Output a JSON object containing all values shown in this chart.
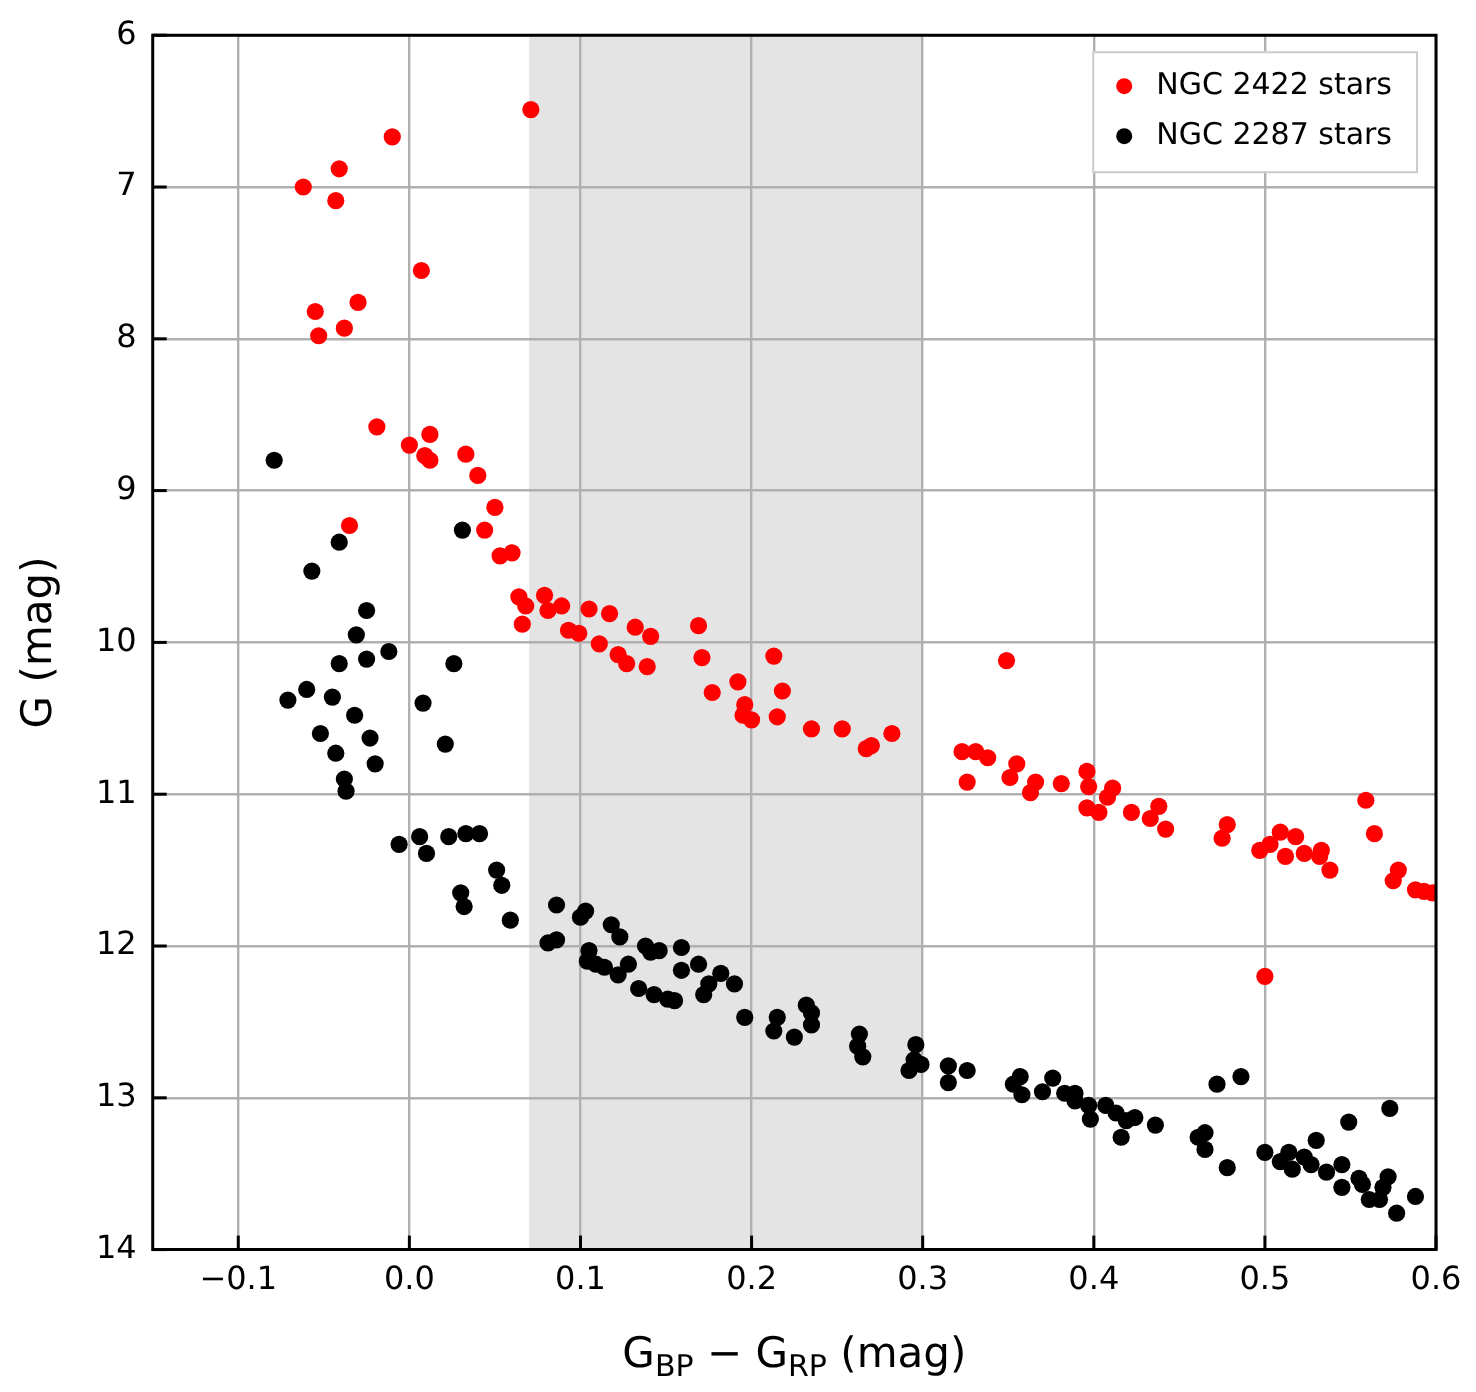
{
  "chart_data": {
    "type": "scatter",
    "xlabel": "G$_{BP}$ − G$_{RP}$ (mag)",
    "ylabel": "G (mag)",
    "xlim": [
      -0.15,
      0.6
    ],
    "ylim": [
      14,
      6
    ],
    "xticks": [
      {
        "value": -0.1,
        "label": "−0.1"
      },
      {
        "value": 0,
        "label": "0.0"
      },
      0.1,
      0.2,
      0.3,
      0.4,
      0.5,
      0.6
    ],
    "yticks": [
      6,
      7,
      8,
      9,
      10,
      11,
      12,
      13,
      14
    ],
    "grid": true,
    "legend": "top right",
    "marker": "circle",
    "bands": [
      {
        "axis": "x",
        "from": 0.07,
        "to": 0.3,
        "color": "#e4e4e4"
      }
    ],
    "series": [
      {
        "name": "NGC 2422 stars",
        "color": "#ff0000",
        "x": [
          0.071,
          -0.01,
          -0.041,
          -0.062,
          -0.043,
          0.007,
          -0.03,
          -0.055,
          -0.038,
          -0.053,
          -0.019,
          0.0,
          0.012,
          0.009,
          0.012,
          0.033,
          0.04,
          -0.035,
          0.05,
          0.044,
          0.053,
          0.06,
          0.064,
          0.068,
          0.066,
          0.079,
          0.081,
          0.089,
          0.105,
          0.093,
          0.099,
          0.111,
          0.117,
          0.122,
          0.127,
          0.132,
          0.139,
          0.141,
          0.169,
          0.171,
          0.177,
          0.192,
          0.196,
          0.195,
          0.2,
          0.213,
          0.218,
          0.215,
          0.235,
          0.253,
          0.267,
          0.27,
          0.282,
          0.323,
          0.331,
          0.338,
          0.326,
          0.349,
          0.355,
          0.351,
          0.366,
          0.363,
          0.381,
          0.396,
          0.397,
          0.396,
          0.403,
          0.408,
          0.411,
          0.422,
          0.433,
          0.438,
          0.442,
          0.478,
          0.475,
          0.497,
          0.503,
          0.509,
          0.518,
          0.512,
          0.523,
          0.533,
          0.532,
          0.538,
          0.559,
          0.564,
          0.578,
          0.575,
          0.588,
          0.593,
          0.598,
          0.5
        ],
        "values": [
          6.49,
          6.67,
          6.88,
          7.0,
          7.09,
          7.55,
          7.76,
          7.82,
          7.93,
          7.98,
          8.58,
          8.7,
          8.63,
          8.77,
          8.8,
          8.76,
          8.9,
          9.23,
          9.11,
          9.26,
          9.43,
          9.41,
          9.7,
          9.76,
          9.88,
          9.69,
          9.79,
          9.76,
          9.78,
          9.92,
          9.94,
          10.01,
          9.81,
          10.08,
          10.14,
          9.9,
          10.16,
          9.96,
          9.89,
          10.1,
          10.33,
          10.26,
          10.41,
          10.48,
          10.51,
          10.09,
          10.32,
          10.49,
          10.57,
          10.57,
          10.7,
          10.68,
          10.6,
          10.72,
          10.72,
          10.76,
          10.92,
          10.12,
          10.8,
          10.89,
          10.92,
          10.99,
          10.93,
          10.85,
          10.95,
          11.09,
          11.12,
          11.02,
          10.96,
          11.12,
          11.16,
          11.08,
          11.23,
          11.2,
          11.29,
          11.37,
          11.33,
          11.25,
          11.28,
          11.41,
          11.39,
          11.37,
          11.41,
          11.5,
          11.04,
          11.26,
          11.5,
          11.57,
          11.63,
          11.64,
          11.65,
          12.2
        ]
      },
      {
        "name": "NGC 2287 stars",
        "color": "#000000",
        "x": [
          -0.079,
          0.031,
          -0.041,
          -0.057,
          -0.025,
          -0.031,
          -0.012,
          -0.025,
          -0.041,
          0.026,
          -0.06,
          -0.071,
          -0.045,
          0.008,
          -0.032,
          -0.052,
          -0.023,
          0.021,
          -0.043,
          -0.02,
          -0.038,
          -0.037,
          -0.006,
          0.006,
          0.01,
          0.023,
          0.033,
          0.041,
          0.051,
          0.054,
          0.03,
          0.032,
          0.059,
          0.086,
          0.1,
          0.103,
          0.081,
          0.086,
          0.105,
          0.104,
          0.109,
          0.114,
          0.118,
          0.123,
          0.122,
          0.128,
          0.134,
          0.138,
          0.141,
          0.146,
          0.143,
          0.151,
          0.155,
          0.159,
          0.159,
          0.169,
          0.175,
          0.172,
          0.182,
          0.19,
          0.196,
          0.215,
          0.213,
          0.225,
          0.232,
          0.235,
          0.235,
          0.263,
          0.262,
          0.265,
          0.296,
          0.295,
          0.292,
          0.299,
          0.315,
          0.315,
          0.326,
          0.357,
          0.353,
          0.358,
          0.37,
          0.376,
          0.383,
          0.389,
          0.389,
          0.397,
          0.398,
          0.407,
          0.413,
          0.416,
          0.419,
          0.424,
          0.436,
          0.461,
          0.465,
          0.465,
          0.472,
          0.486,
          0.478,
          0.5,
          0.509,
          0.514,
          0.516,
          0.523,
          0.527,
          0.53,
          0.536,
          0.545,
          0.545,
          0.549,
          0.555,
          0.557,
          0.561,
          0.569,
          0.572,
          0.567,
          0.573,
          0.577,
          0.588
        ],
        "values": [
          8.8,
          9.26,
          9.34,
          9.53,
          9.79,
          9.95,
          10.06,
          10.11,
          10.14,
          10.14,
          10.31,
          10.38,
          10.36,
          10.4,
          10.48,
          10.6,
          10.63,
          10.67,
          10.73,
          10.8,
          10.9,
          10.98,
          11.33,
          11.28,
          11.39,
          11.28,
          11.26,
          11.26,
          11.5,
          11.6,
          11.65,
          11.74,
          11.83,
          11.73,
          11.81,
          11.77,
          11.98,
          11.96,
          12.03,
          12.1,
          12.12,
          12.14,
          11.86,
          11.94,
          12.19,
          12.12,
          12.28,
          12.0,
          12.04,
          12.03,
          12.32,
          12.35,
          12.36,
          12.01,
          12.16,
          12.12,
          12.25,
          12.32,
          12.18,
          12.25,
          12.47,
          12.47,
          12.56,
          12.6,
          12.39,
          12.44,
          12.52,
          12.58,
          12.66,
          12.73,
          12.65,
          12.75,
          12.82,
          12.78,
          12.79,
          12.9,
          12.82,
          12.86,
          12.91,
          12.98,
          12.96,
          12.87,
          12.97,
          12.97,
          13.02,
          13.05,
          13.14,
          13.05,
          13.1,
          13.26,
          13.15,
          13.13,
          13.18,
          13.26,
          13.23,
          13.34,
          12.91,
          12.86,
          13.46,
          13.36,
          13.42,
          13.36,
          13.47,
          13.39,
          13.44,
          13.28,
          13.49,
          13.44,
          13.59,
          13.16,
          13.53,
          13.57,
          13.67,
          13.59,
          13.52,
          13.67,
          13.07,
          13.76,
          13.65
        ]
      }
    ]
  }
}
